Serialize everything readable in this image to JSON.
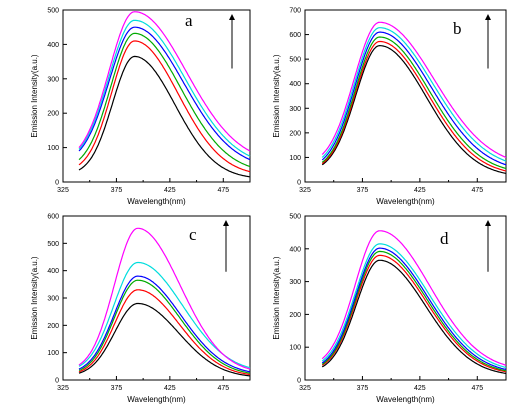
{
  "chart_data": [
    {
      "type": "line",
      "panel_label": "a",
      "xlabel": "Wavelength(nm)",
      "ylabel": "Emission Intensity(a.u.)",
      "xlim": [
        325,
        500
      ],
      "ylim": [
        0,
        500
      ],
      "x_ticks": [
        325,
        375,
        425,
        475
      ],
      "y_ticks": [
        0,
        100,
        200,
        300,
        400,
        500
      ],
      "peak_x": 392,
      "arrow": "upward",
      "series": [
        {
          "color": "#000000",
          "values": [
            {
              "x": 340,
              "y": 35
            },
            {
              "x": 392,
              "y": 365
            },
            {
              "x": 500,
              "y": 15
            }
          ]
        },
        {
          "color": "#ff0000",
          "values": [
            {
              "x": 340,
              "y": 50
            },
            {
              "x": 392,
              "y": 410
            },
            {
              "x": 500,
              "y": 30
            }
          ]
        },
        {
          "color": "#00aa00",
          "values": [
            {
              "x": 340,
              "y": 65
            },
            {
              "x": 392,
              "y": 432
            },
            {
              "x": 500,
              "y": 45
            }
          ]
        },
        {
          "color": "#0000ff",
          "values": [
            {
              "x": 340,
              "y": 90
            },
            {
              "x": 392,
              "y": 450
            },
            {
              "x": 500,
              "y": 65
            }
          ]
        },
        {
          "color": "#00dddd",
          "values": [
            {
              "x": 340,
              "y": 95
            },
            {
              "x": 392,
              "y": 470
            },
            {
              "x": 500,
              "y": 75
            }
          ]
        },
        {
          "color": "#ff00ff",
          "values": [
            {
              "x": 340,
              "y": 100
            },
            {
              "x": 392,
              "y": 495
            },
            {
              "x": 500,
              "y": 90
            }
          ]
        }
      ]
    },
    {
      "type": "line",
      "panel_label": "b",
      "xlabel": "Wavelength(nm)",
      "ylabel": "Emission Intensity(a.u.)",
      "xlim": [
        325,
        500
      ],
      "ylim": [
        0,
        700
      ],
      "x_ticks": [
        325,
        375,
        425,
        475
      ],
      "y_ticks": [
        0,
        100,
        200,
        300,
        400,
        500,
        600,
        700
      ],
      "peak_x": 390,
      "arrow": "upward",
      "series": [
        {
          "color": "#000000",
          "values": [
            {
              "x": 340,
              "y": 70
            },
            {
              "x": 390,
              "y": 555
            },
            {
              "x": 500,
              "y": 35
            }
          ]
        },
        {
          "color": "#ff0000",
          "values": [
            {
              "x": 340,
              "y": 75
            },
            {
              "x": 390,
              "y": 572
            },
            {
              "x": 500,
              "y": 45
            }
          ]
        },
        {
          "color": "#00aa00",
          "values": [
            {
              "x": 340,
              "y": 80
            },
            {
              "x": 390,
              "y": 590
            },
            {
              "x": 500,
              "y": 55
            }
          ]
        },
        {
          "color": "#0000ff",
          "values": [
            {
              "x": 340,
              "y": 90
            },
            {
              "x": 390,
              "y": 610
            },
            {
              "x": 500,
              "y": 70
            }
          ]
        },
        {
          "color": "#00dddd",
          "values": [
            {
              "x": 340,
              "y": 100
            },
            {
              "x": 390,
              "y": 628
            },
            {
              "x": 500,
              "y": 85
            }
          ]
        },
        {
          "color": "#ff00ff",
          "values": [
            {
              "x": 340,
              "y": 112
            },
            {
              "x": 390,
              "y": 650
            },
            {
              "x": 500,
              "y": 100
            }
          ]
        }
      ]
    },
    {
      "type": "line",
      "panel_label": "c",
      "xlabel": "Wavelength(nm)",
      "ylabel": "Emission Intensity(a.u.)",
      "xlim": [
        325,
        500
      ],
      "ylim": [
        0,
        600
      ],
      "x_ticks": [
        325,
        375,
        425,
        475
      ],
      "y_ticks": [
        0,
        100,
        200,
        300,
        400,
        500,
        600
      ],
      "peak_x": 395,
      "arrow": "upward",
      "series": [
        {
          "color": "#000000",
          "values": [
            {
              "x": 340,
              "y": 25
            },
            {
              "x": 395,
              "y": 280
            },
            {
              "x": 500,
              "y": 15
            }
          ]
        },
        {
          "color": "#ff0000",
          "values": [
            {
              "x": 340,
              "y": 30
            },
            {
              "x": 395,
              "y": 330
            },
            {
              "x": 500,
              "y": 20
            }
          ]
        },
        {
          "color": "#00aa00",
          "values": [
            {
              "x": 340,
              "y": 35
            },
            {
              "x": 395,
              "y": 365
            },
            {
              "x": 500,
              "y": 25
            }
          ]
        },
        {
          "color": "#0000ff",
          "values": [
            {
              "x": 340,
              "y": 40
            },
            {
              "x": 395,
              "y": 380
            },
            {
              "x": 500,
              "y": 30
            }
          ]
        },
        {
          "color": "#00dddd",
          "values": [
            {
              "x": 340,
              "y": 50
            },
            {
              "x": 395,
              "y": 430
            },
            {
              "x": 500,
              "y": 45
            }
          ]
        },
        {
          "color": "#ff00ff",
          "values": [
            {
              "x": 340,
              "y": 55
            },
            {
              "x": 395,
              "y": 555
            },
            {
              "x": 500,
              "y": 40
            }
          ]
        }
      ]
    },
    {
      "type": "line",
      "panel_label": "d",
      "xlabel": "Wavelength(nm)",
      "ylabel": "Emission Intensity(a.u.)",
      "xlim": [
        325,
        500
      ],
      "ylim": [
        0,
        500
      ],
      "x_ticks": [
        325,
        375,
        425,
        475
      ],
      "y_ticks": [
        0,
        100,
        200,
        300,
        400,
        500
      ],
      "peak_x": 390,
      "arrow": "upward",
      "series": [
        {
          "color": "#000000",
          "values": [
            {
              "x": 340,
              "y": 40
            },
            {
              "x": 390,
              "y": 365
            },
            {
              "x": 500,
              "y": 20
            }
          ]
        },
        {
          "color": "#ff0000",
          "values": [
            {
              "x": 340,
              "y": 45
            },
            {
              "x": 390,
              "y": 380
            },
            {
              "x": 500,
              "y": 25
            }
          ]
        },
        {
          "color": "#00aa00",
          "values": [
            {
              "x": 340,
              "y": 48
            },
            {
              "x": 390,
              "y": 392
            },
            {
              "x": 500,
              "y": 28
            }
          ]
        },
        {
          "color": "#0000ff",
          "values": [
            {
              "x": 340,
              "y": 52
            },
            {
              "x": 390,
              "y": 402
            },
            {
              "x": 500,
              "y": 32
            }
          ]
        },
        {
          "color": "#00dddd",
          "values": [
            {
              "x": 340,
              "y": 58
            },
            {
              "x": 390,
              "y": 415
            },
            {
              "x": 500,
              "y": 38
            }
          ]
        },
        {
          "color": "#ff00ff",
          "values": [
            {
              "x": 340,
              "y": 65
            },
            {
              "x": 390,
              "y": 455
            },
            {
              "x": 500,
              "y": 45
            }
          ]
        }
      ]
    }
  ]
}
